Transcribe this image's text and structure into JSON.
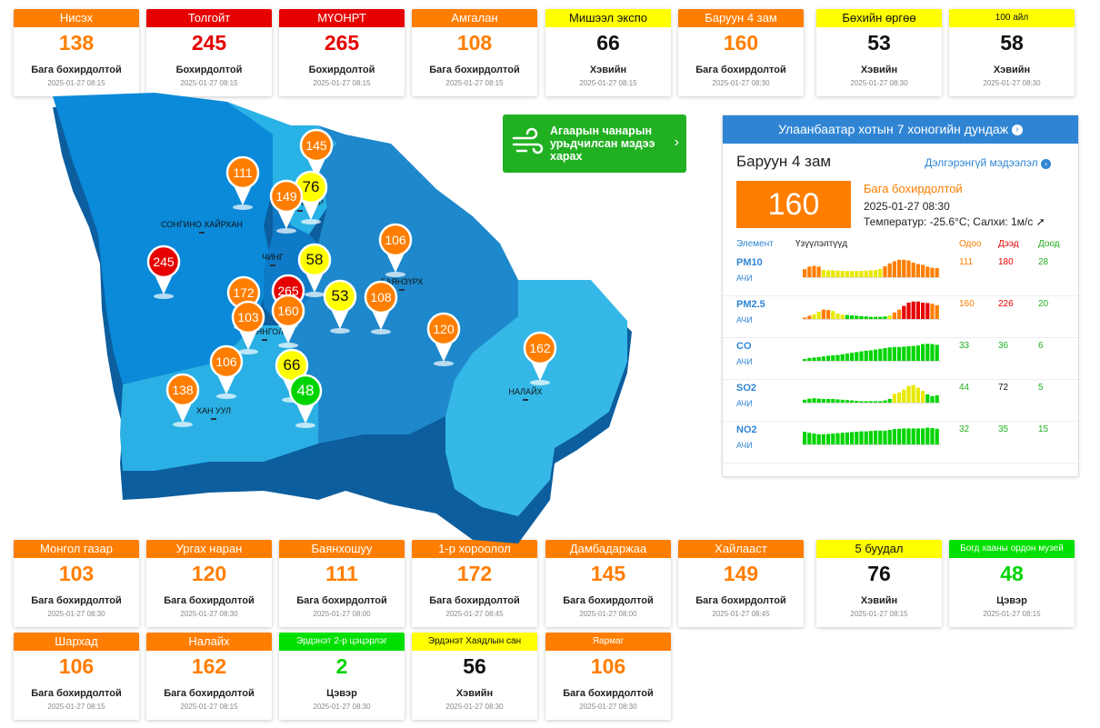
{
  "colors": {
    "orange": "#ff7e00",
    "red": "#e60000",
    "yellow": "#ffff00",
    "green": "#00e000",
    "blue": "#2f85d4",
    "button_green": "#21b021"
  },
  "cards": [
    {
      "name": "Нисэх",
      "value": "138",
      "status": "Бага бохирдолтой",
      "time": "2025-01-27 08:15",
      "level": "o"
    },
    {
      "name": "Толгойт",
      "value": "245",
      "status": "Бохирдолтой",
      "time": "2025-01-27 08:15",
      "level": "r"
    },
    {
      "name": "МҮОНРТ",
      "value": "265",
      "status": "Бохирдолтой",
      "time": "2025-01-27 08:15",
      "level": "r"
    },
    {
      "name": "Амгалан",
      "value": "108",
      "status": "Бага бохирдолтой",
      "time": "2025-01-27 08:15",
      "level": "o"
    },
    {
      "name": "Мишээл экспо",
      "value": "66",
      "status": "Хэвийн",
      "time": "2025-01-27 08:15",
      "level": "y"
    },
    {
      "name": "Баруун 4 зам",
      "value": "160",
      "status": "Бага бохирдолтой",
      "time": "2025-01-27 08:30",
      "level": "o"
    },
    {
      "name": "Бөхийн өргөө",
      "value": "53",
      "status": "Хэвийн",
      "time": "2025-01-27 08:30",
      "level": "y"
    },
    {
      "name": "100 айл",
      "value": "58",
      "status": "Хэвийн",
      "time": "2025-01-27 08:30",
      "level": "y"
    },
    {
      "name": "Монгол газар",
      "value": "103",
      "status": "Бага бохирдолтой",
      "time": "2025-01-27 08:30",
      "level": "o"
    },
    {
      "name": "Ургах наран",
      "value": "120",
      "status": "Бага бохирдолтой",
      "time": "2025-01-27 08:30",
      "level": "o"
    },
    {
      "name": "Баянхошуу",
      "value": "111",
      "status": "Бага бохирдолтой",
      "time": "2025-01-27 08:00",
      "level": "o"
    },
    {
      "name": "1-р хороолол",
      "value": "172",
      "status": "Бага бохирдолтой",
      "time": "2025-01-27 08:45",
      "level": "o"
    },
    {
      "name": "Дамбадаржаа",
      "value": "145",
      "status": "Бага бохирдолтой",
      "time": "2025-01-27 08:00",
      "level": "o"
    },
    {
      "name": "Хайлааст",
      "value": "149",
      "status": "Бага бохирдолтой",
      "time": "2025-01-27 08:45",
      "level": "o"
    },
    {
      "name": "5 буудал",
      "value": "76",
      "status": "Хэвийн",
      "time": "2025-01-27 08:15",
      "level": "y"
    },
    {
      "name": "Богд хааны ордон музей",
      "value": "48",
      "status": "Цэвэр",
      "time": "2025-01-27 08:15",
      "level": "g"
    },
    {
      "name": "Шархад",
      "value": "106",
      "status": "Бага бохирдолтой",
      "time": "2025-01-27 08:15",
      "level": "o"
    },
    {
      "name": "Налайх",
      "value": "162",
      "status": "Бага бохирдолтой",
      "time": "2025-01-27 08:15",
      "level": "o"
    },
    {
      "name": "Эрдэнэт 2-р цэцэрлэг",
      "value": "2",
      "status": "Цэвэр",
      "time": "2025-01-27 08:30",
      "level": "g"
    },
    {
      "name": "Эрдэнэт Хаядлын сан",
      "value": "56",
      "status": "Хэвийн",
      "time": "2025-01-27 08:30",
      "level": "y"
    },
    {
      "name": "Яармаг",
      "value": "106",
      "status": "Бага бохирдолтой",
      "time": "2025-01-27 08:30",
      "level": "o"
    }
  ],
  "forecast": {
    "text": "Агаарын чанарын урьдчилсан мэдээ харах",
    "icon": "wind-icon"
  },
  "panel": {
    "header": "Улаанбаатар хотын 7 хоногийн дундаж",
    "station": "Баруун 4 зам",
    "more": "Дэлгэрэнгүй мэдээлэл",
    "aqi": "160",
    "desc": "Бага бохирдолтой",
    "time": "2025-01-27 08:30",
    "weather": "Температур: -25.6°C; Салхи: 1м/с",
    "col_element": "Элемент",
    "col_trend": "Үзүүлэлтүүд",
    "col_now": "Одоо",
    "col_max": "Дээд",
    "col_min": "Доод",
    "pollutants": [
      {
        "name": "PM10",
        "unit": "АЧИ",
        "now": "111",
        "max": "180",
        "min": "28",
        "bars": [
          44,
          58,
          62,
          58,
          40,
          38,
          38,
          36,
          34,
          34,
          34,
          34,
          34,
          36,
          38,
          40,
          46,
          60,
          76,
          88,
          96,
          96,
          92,
          80,
          72,
          68,
          58,
          52,
          50
        ],
        "lv": [
          "o",
          "o",
          "o",
          "o",
          "y",
          "y",
          "y",
          "y",
          "y",
          "y",
          "y",
          "y",
          "y",
          "y",
          "y",
          "y",
          "y",
          "o",
          "o",
          "o",
          "o",
          "o",
          "o",
          "o",
          "o",
          "o",
          "o",
          "o",
          "o"
        ]
      },
      {
        "name": "PM2.5",
        "unit": "АЧИ",
        "now": "160",
        "max": "226",
        "min": "20",
        "bars": [
          8,
          18,
          26,
          40,
          52,
          50,
          44,
          30,
          24,
          22,
          20,
          18,
          16,
          14,
          12,
          12,
          12,
          14,
          20,
          36,
          52,
          72,
          90,
          96,
          96,
          90,
          88,
          84,
          76
        ],
        "lv": [
          "o",
          "o",
          "y",
          "y",
          "o",
          "o",
          "y",
          "y",
          "y",
          "g",
          "g",
          "g",
          "g",
          "g",
          "g",
          "g",
          "g",
          "g",
          "y",
          "o",
          "o",
          "r",
          "r",
          "r",
          "r",
          "r",
          "r",
          "o",
          "o"
        ]
      },
      {
        "name": "CO",
        "unit": "АЧИ",
        "now": "33",
        "max": "36",
        "min": "6",
        "bars": [
          10,
          16,
          18,
          20,
          24,
          28,
          30,
          32,
          36,
          40,
          44,
          48,
          52,
          56,
          58,
          62,
          66,
          70,
          74,
          76,
          76,
          78,
          80,
          82,
          84,
          92,
          94,
          92,
          88
        ],
        "lv": [
          "g",
          "g",
          "g",
          "g",
          "g",
          "g",
          "g",
          "g",
          "g",
          "g",
          "g",
          "g",
          "g",
          "g",
          "g",
          "g",
          "g",
          "g",
          "g",
          "g",
          "g",
          "g",
          "g",
          "g",
          "g",
          "g",
          "g",
          "g",
          "g"
        ]
      },
      {
        "name": "SO2",
        "unit": "АЧИ",
        "now": "44",
        "max": "72",
        "min": "5",
        "bars": [
          16,
          22,
          24,
          22,
          20,
          20,
          20,
          18,
          16,
          14,
          12,
          10,
          8,
          8,
          8,
          8,
          8,
          12,
          20,
          48,
          56,
          72,
          92,
          96,
          82,
          64,
          46,
          36,
          40
        ],
        "lv": [
          "g",
          "g",
          "g",
          "g",
          "g",
          "g",
          "g",
          "g",
          "g",
          "g",
          "g",
          "g",
          "g",
          "g",
          "g",
          "g",
          "g",
          "g",
          "g",
          "y",
          "y",
          "y",
          "y",
          "y",
          "y",
          "y",
          "g",
          "g",
          "g"
        ]
      },
      {
        "name": "NO2",
        "unit": "АЧИ",
        "now": "32",
        "max": "35",
        "min": "15",
        "bars": [
          70,
          64,
          60,
          56,
          56,
          58,
          60,
          62,
          64,
          66,
          68,
          70,
          72,
          72,
          74,
          76,
          76,
          76,
          80,
          84,
          86,
          88,
          88,
          88,
          88,
          88,
          92,
          90,
          86
        ],
        "lv": [
          "g",
          "g",
          "g",
          "g",
          "g",
          "g",
          "g",
          "g",
          "g",
          "g",
          "g",
          "g",
          "g",
          "g",
          "g",
          "g",
          "g",
          "g",
          "g",
          "g",
          "g",
          "g",
          "g",
          "g",
          "g",
          "g",
          "g",
          "g",
          "g"
        ]
      }
    ]
  },
  "map": {
    "districts": [
      "СОНГИНО ХАЙРХАН",
      "БАЯНЗҮРХ",
      "ХАН УУЛ",
      "НАЛАЙХ",
      "ЧИНГ",
      "БАЯНГОЛ",
      "СҮХБААТАР"
    ],
    "markers": [
      {
        "value": "145",
        "level": "o"
      },
      {
        "value": "111",
        "level": "o"
      },
      {
        "value": "76",
        "level": "y"
      },
      {
        "value": "149",
        "level": "o"
      },
      {
        "value": "106",
        "level": "o"
      },
      {
        "value": "245",
        "level": "r"
      },
      {
        "value": "58",
        "level": "y"
      },
      {
        "value": "172",
        "level": "o"
      },
      {
        "value": "265",
        "level": "r"
      },
      {
        "value": "53",
        "level": "y"
      },
      {
        "value": "108",
        "level": "o"
      },
      {
        "value": "103",
        "level": "o"
      },
      {
        "value": "160",
        "level": "o"
      },
      {
        "value": "120",
        "level": "o"
      },
      {
        "value": "162",
        "level": "o"
      },
      {
        "value": "106",
        "level": "o"
      },
      {
        "value": "66",
        "level": "y"
      },
      {
        "value": "138",
        "level": "o"
      },
      {
        "value": "48",
        "level": "g"
      }
    ]
  }
}
